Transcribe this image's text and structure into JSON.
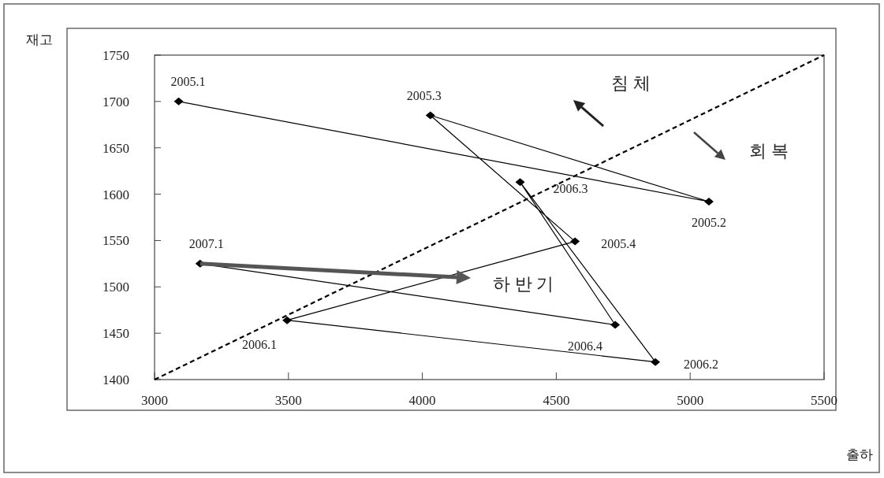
{
  "chart_data": {
    "type": "line",
    "xlabel": "출하",
    "ylabel": "재고",
    "xlim": [
      3000,
      5500
    ],
    "ylim": [
      1400,
      1750
    ],
    "xticks": [
      3000,
      3500,
      4000,
      4500,
      5000,
      5500
    ],
    "yticks": [
      1400,
      1450,
      1500,
      1550,
      1600,
      1650,
      1700,
      1750
    ],
    "grid": false,
    "series": [
      {
        "color": "#000000",
        "marker": "diamond",
        "line_style": "solid",
        "x": [
          3090,
          5070,
          4030,
          4570,
          3495,
          4870,
          4365,
          4720,
          3170
        ],
        "values": [
          1700,
          1592,
          1685,
          1549,
          1464,
          1419,
          1613,
          1459,
          1525
        ]
      },
      {
        "color": "#000000",
        "marker": "none",
        "line_style": "dashed",
        "x": [
          3000,
          5500
        ],
        "values": [
          1400,
          1750
        ]
      }
    ],
    "annotations": [
      {
        "text": "2005.1",
        "x": 3090,
        "y": 1700
      },
      {
        "text": "2005.2",
        "x": 5070,
        "y": 1592
      },
      {
        "text": "2005.3",
        "x": 4030,
        "y": 1685
      },
      {
        "text": "2005.4",
        "x": 4570,
        "y": 1549
      },
      {
        "text": "2006.1",
        "x": 3495,
        "y": 1464
      },
      {
        "text": "2006.2",
        "x": 4870,
        "y": 1419
      },
      {
        "text": "2006.3",
        "x": 4365,
        "y": 1613
      },
      {
        "text": "2006.4",
        "x": 4720,
        "y": 1459
      },
      {
        "text": "2007.1",
        "x": 3170,
        "y": 1525
      },
      "침 체",
      "회 복",
      "하 반 기"
    ]
  }
}
